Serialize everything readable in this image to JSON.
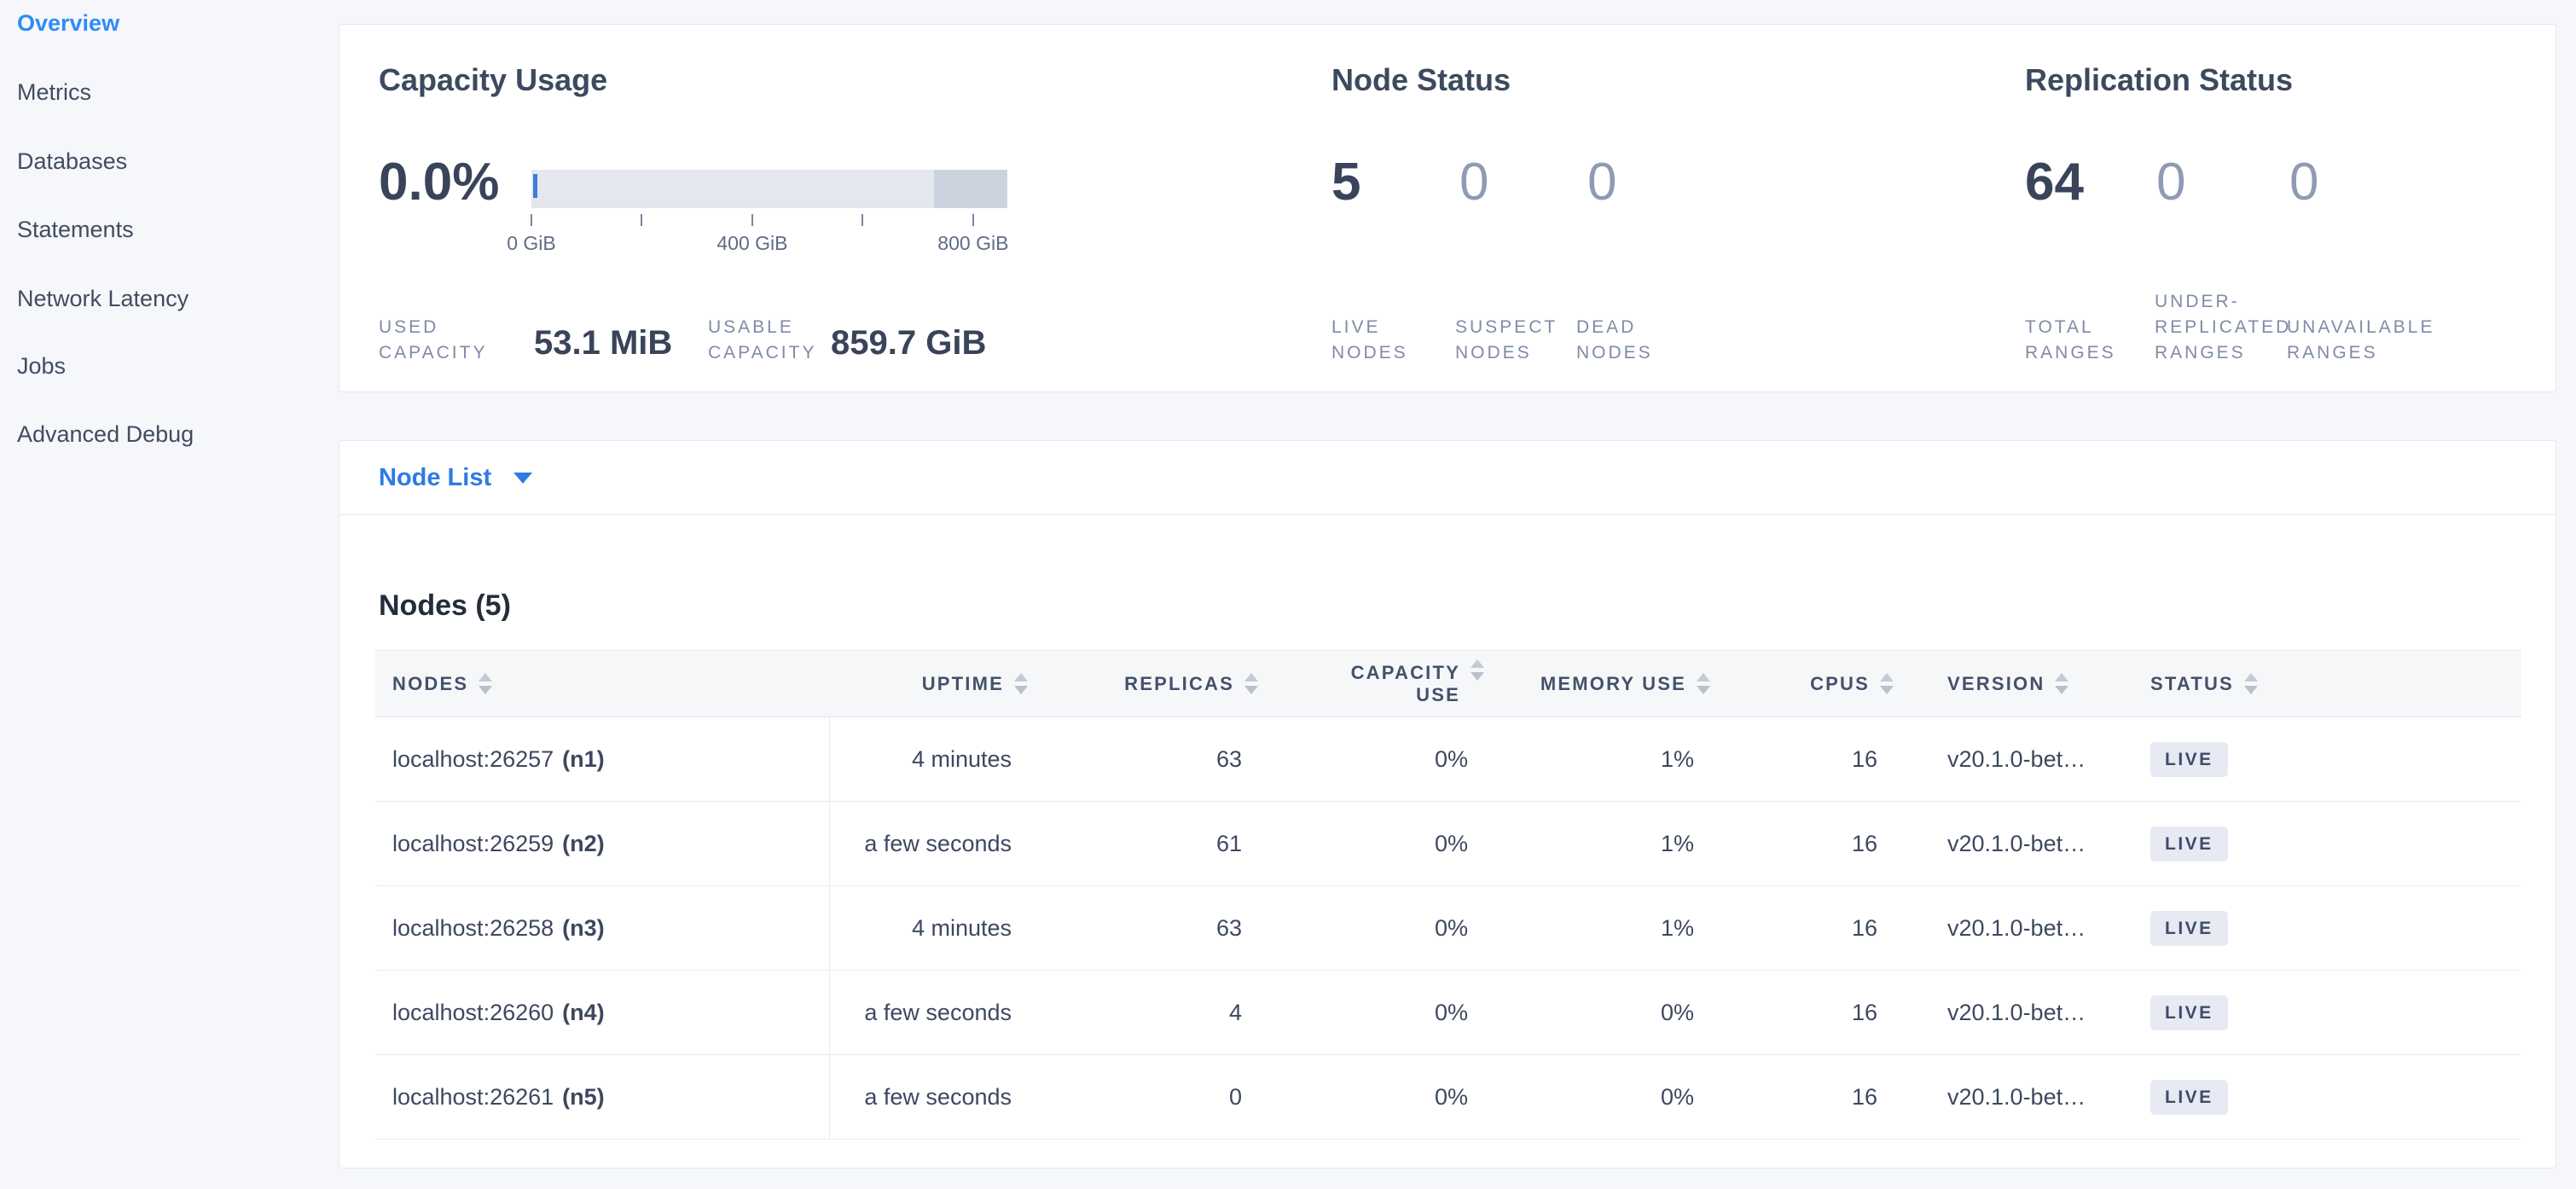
{
  "sidebar": {
    "items": [
      {
        "label": "Overview",
        "active": true
      },
      {
        "label": "Metrics",
        "active": false
      },
      {
        "label": "Databases",
        "active": false
      },
      {
        "label": "Statements",
        "active": false
      },
      {
        "label": "Network Latency",
        "active": false
      },
      {
        "label": "Jobs",
        "active": false
      },
      {
        "label": "Advanced Debug",
        "active": false
      }
    ]
  },
  "summary": {
    "capacity": {
      "title": "Capacity Usage",
      "percent": "0.0%",
      "gauge": {
        "max_gib": 862,
        "tick_values": [
          0,
          200,
          400,
          600,
          800
        ],
        "tick_labels": [
          {
            "value": 0,
            "text": "0 GiB"
          },
          {
            "value": 400,
            "text": "400 GiB"
          },
          {
            "value": 800,
            "text": "800 GiB"
          }
        ],
        "dark_segment_start_pct": 84.5
      },
      "stats": [
        {
          "lines": [
            "USED",
            "CAPACITY"
          ],
          "value": "53.1 MiB"
        },
        {
          "lines": [
            "USABLE",
            "CAPACITY"
          ],
          "value": "859.7 GiB"
        }
      ]
    },
    "node_status": {
      "title": "Node Status",
      "stats": [
        {
          "value": "5",
          "lines": [
            "LIVE",
            "NODES"
          ],
          "emphasis": true
        },
        {
          "value": "0",
          "lines": [
            "SUSPECT",
            "NODES"
          ],
          "emphasis": false
        },
        {
          "value": "0",
          "lines": [
            "DEAD",
            "NODES"
          ],
          "emphasis": false
        }
      ]
    },
    "replication": {
      "title": "Replication Status",
      "stats": [
        {
          "value": "64",
          "lines": [
            "TOTAL",
            "RANGES"
          ],
          "emphasis": true
        },
        {
          "value": "0",
          "lines": [
            "UNDER-",
            "REPLICATED",
            "RANGES"
          ],
          "emphasis": false
        },
        {
          "value": "0",
          "lines": [
            "UNAVAILABLE",
            "RANGES"
          ],
          "emphasis": false
        }
      ]
    }
  },
  "node_list": {
    "dropdown_label": "Node List"
  },
  "nodes_table": {
    "title": "Nodes (5)",
    "columns": [
      {
        "label": "NODES",
        "align": "left"
      },
      {
        "label": "UPTIME",
        "align": "right"
      },
      {
        "label": "REPLICAS",
        "align": "right"
      },
      {
        "label": "CAPACITY\nUSE",
        "align": "right"
      },
      {
        "label": "MEMORY USE",
        "align": "right"
      },
      {
        "label": "CPUS",
        "align": "right"
      },
      {
        "label": "VERSION",
        "align": "left"
      },
      {
        "label": "STATUS",
        "align": "left"
      }
    ],
    "rows": [
      {
        "node": "localhost:26257",
        "id": "(n1)",
        "uptime": "4 minutes",
        "replicas": "63",
        "capacity_use": "0%",
        "memory_use": "1%",
        "cpus": "16",
        "version": "v20.1.0-bet…",
        "status": "LIVE"
      },
      {
        "node": "localhost:26259",
        "id": "(n2)",
        "uptime": "a few seconds",
        "replicas": "61",
        "capacity_use": "0%",
        "memory_use": "1%",
        "cpus": "16",
        "version": "v20.1.0-bet…",
        "status": "LIVE"
      },
      {
        "node": "localhost:26258",
        "id": "(n3)",
        "uptime": "4 minutes",
        "replicas": "63",
        "capacity_use": "0%",
        "memory_use": "1%",
        "cpus": "16",
        "version": "v20.1.0-bet…",
        "status": "LIVE"
      },
      {
        "node": "localhost:26260",
        "id": "(n4)",
        "uptime": "a few seconds",
        "replicas": "4",
        "capacity_use": "0%",
        "memory_use": "0%",
        "cpus": "16",
        "version": "v20.1.0-bet…",
        "status": "LIVE"
      },
      {
        "node": "localhost:26261",
        "id": "(n5)",
        "uptime": "a few seconds",
        "replicas": "0",
        "capacity_use": "0%",
        "memory_use": "0%",
        "cpus": "16",
        "version": "v20.1.0-bet…",
        "status": "LIVE"
      }
    ]
  },
  "colors": {
    "accent_blue": "#2F8CF5",
    "link_blue": "#2C7BE5",
    "dark_text": "#39445A",
    "muted_label": "#7F8BA6",
    "dim_number": "#8F9BB5",
    "badge_bg": "#E7EAF3",
    "gauge_track": "#E4E7EE",
    "gauge_dark": "#CDD3DE",
    "gauge_used": "#3E7BDE"
  }
}
